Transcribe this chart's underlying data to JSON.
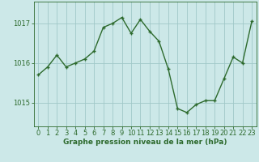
{
  "x": [
    0,
    1,
    2,
    3,
    4,
    5,
    6,
    7,
    8,
    9,
    10,
    11,
    12,
    13,
    14,
    15,
    16,
    17,
    18,
    19,
    20,
    21,
    22,
    23
  ],
  "y": [
    1015.7,
    1015.9,
    1016.2,
    1015.9,
    1016.0,
    1016.1,
    1016.3,
    1016.9,
    1017.0,
    1017.15,
    1016.75,
    1017.1,
    1016.8,
    1016.55,
    1015.85,
    1014.85,
    1014.75,
    1014.95,
    1015.05,
    1015.05,
    1015.6,
    1016.15,
    1016.0,
    1017.05
  ],
  "line_color": "#2d6a2d",
  "marker": "+",
  "marker_size": 3,
  "bg_color": "#cce8e8",
  "grid_color": "#a0c8c8",
  "xlabel": "Graphe pression niveau de la mer (hPa)",
  "xlabel_color": "#2d6a2d",
  "yticks": [
    1015,
    1016,
    1017
  ],
  "ylim": [
    1014.4,
    1017.55
  ],
  "xlim": [
    -0.5,
    23.5
  ],
  "xticks": [
    0,
    1,
    2,
    3,
    4,
    5,
    6,
    7,
    8,
    9,
    10,
    11,
    12,
    13,
    14,
    15,
    16,
    17,
    18,
    19,
    20,
    21,
    22,
    23
  ],
  "tick_color": "#2d6a2d",
  "spine_color": "#2d6a2d",
  "tick_fontsize": 6,
  "xlabel_fontsize": 6.5,
  "linewidth": 1.0
}
